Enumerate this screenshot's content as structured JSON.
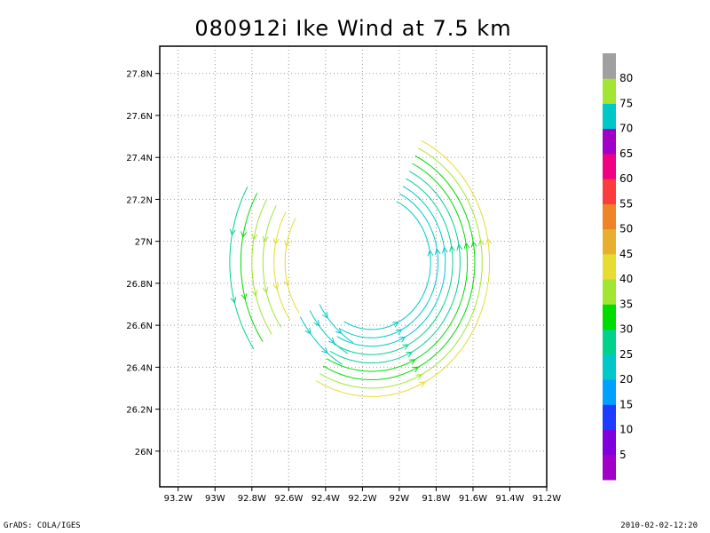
{
  "chart_data": {
    "type": "streamline",
    "title": "080912i Ike Wind at 7.5 km",
    "x_axis": {
      "range": [
        -93.3,
        -91.2
      ],
      "ticks": [
        -93.2,
        -93.0,
        -92.8,
        -92.6,
        -92.4,
        -92.2,
        -92.0,
        -91.8,
        -91.6,
        -91.4,
        -91.2
      ],
      "tick_labels": [
        "93.2W",
        "93W",
        "92.8W",
        "92.6W",
        "92.4W",
        "92.2W",
        "92W",
        "91.8W",
        "91.6W",
        "91.4W",
        "91.2W"
      ]
    },
    "y_axis": {
      "range": [
        25.83,
        27.93
      ],
      "ticks": [
        26.0,
        26.2,
        26.4,
        26.6,
        26.8,
        27.0,
        27.2,
        27.4,
        27.6,
        27.8
      ],
      "tick_labels": [
        "26N",
        "26.2N",
        "26.4N",
        "26.6N",
        "26.8N",
        "27N",
        "27.2N",
        "27.4N",
        "27.6N",
        "27.8N"
      ]
    },
    "grid": true,
    "colorbar": {
      "levels": [
        5,
        10,
        15,
        20,
        25,
        30,
        35,
        40,
        45,
        50,
        55,
        60,
        65,
        70,
        75,
        80
      ],
      "colors": [
        "#a000c8",
        "#7f00dc",
        "#1e3cff",
        "#00a0ff",
        "#00c8c8",
        "#00d28c",
        "#00dc00",
        "#a0e632",
        "#e6dc32",
        "#e6af2d",
        "#f08228",
        "#fa3c3c",
        "#f00082",
        "#a000c8",
        "#00c8c8",
        "#a0e632",
        "#a0a0a0"
      ]
    },
    "streamline_groups": [
      {
        "region": "west band",
        "center": [
          -92.2,
          26.9
        ],
        "angles": [
          150,
          215
        ],
        "radii": [
          0.42,
          0.48,
          0.54,
          0.6,
          0.66,
          0.72
        ],
        "colors": [
          "#e6dc32",
          "#e6dc32",
          "#a0e632",
          "#a0e632",
          "#00dc00",
          "#00d28c"
        ]
      },
      {
        "region": "southwest patch",
        "center": [
          -92.0,
          26.95
        ],
        "angles": [
          210,
          240
        ],
        "radii": [
          0.5,
          0.56,
          0.62
        ],
        "colors": [
          "#00c8c8",
          "#00c8c8",
          "#00c8c8"
        ]
      },
      {
        "region": "eastern arc",
        "center": [
          -92.15,
          26.9
        ],
        "angles": [
          -118,
          65
        ],
        "radii": [
          0.32,
          0.36,
          0.4,
          0.44,
          0.48,
          0.52,
          0.56,
          0.6,
          0.64
        ],
        "colors": [
          "#00c8c8",
          "#00c8c8",
          "#00c8c8",
          "#00d28c",
          "#00d28c",
          "#00dc00",
          "#00dc00",
          "#a0e632",
          "#e6dc32"
        ]
      }
    ]
  },
  "footer": {
    "left": "GrADS: COLA/IGES",
    "right": "2010-02-02-12:20"
  }
}
